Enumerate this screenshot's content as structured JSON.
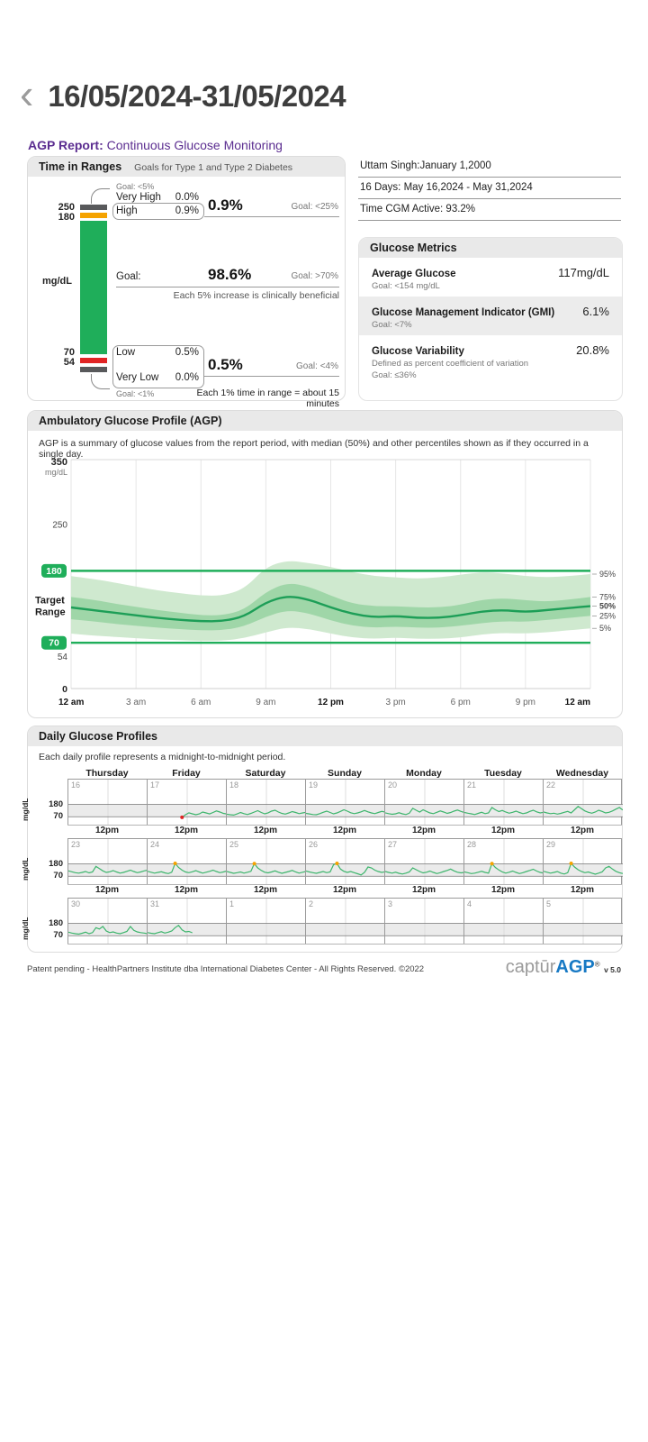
{
  "colors": {
    "accent_purple": "#5b2d90",
    "green": "#1fae5a",
    "light_green_band": "#cfe9cf",
    "mid_green_band": "#9fd6a8",
    "median_green": "#1d9e57",
    "orange": "#f5a300",
    "red": "#e02424",
    "dark_gray": "#58595b",
    "band_gray": "#ebebeb",
    "trace_green": "#3db56c",
    "logo_blue": "#1779c4"
  },
  "header": {
    "back_icon": "‹",
    "title": "16/05/2024-31/05/2024"
  },
  "report": {
    "label": "AGP Report:",
    "subtitle": "Continuous Glucose Monitoring"
  },
  "time_in_ranges": {
    "title": "Time in Ranges",
    "subtitle": "Goals for Type 1 and Type 2 Diabetes",
    "axis": {
      "v250": "250",
      "v180": "180",
      "v70": "70",
      "v54": "54",
      "unit": "mg/dL"
    },
    "very_high": {
      "label": "Very High",
      "value": "0.0%",
      "goal": "Goal: <5%"
    },
    "high": {
      "label": "High",
      "value": "0.9%"
    },
    "high_combined": {
      "value": "0.9%",
      "goal": "Goal: <25%"
    },
    "target": {
      "label": "Goal:",
      "value": "98.6%",
      "goal": "Goal: >70%",
      "note": "Each 5% increase is clinically beneficial"
    },
    "low": {
      "label": "Low",
      "value": "0.5%"
    },
    "low_combined": {
      "value": "0.5%",
      "goal": "Goal: <4%"
    },
    "very_low": {
      "label": "Very Low",
      "value": "0.0%",
      "goal": "Goal: <1%"
    },
    "footnote": "Each 1% time in range = about 15 minutes"
  },
  "patient": {
    "name_dob": "Uttam Singh:January 1,2000",
    "period": "16 Days: May 16,2024 - May 31,2024",
    "cgm_active": "Time CGM Active: 93.2%"
  },
  "glucose_metrics": {
    "title": "Glucose Metrics",
    "rows": [
      {
        "label": "Average Glucose",
        "value": "117mg/dL",
        "sub": [
          "Goal: <154 mg/dL"
        ],
        "highlight": false
      },
      {
        "label": "Glucose Management Indicator (GMI)",
        "value": "6.1%",
        "sub": [
          "Goal: <7%"
        ],
        "highlight": true
      },
      {
        "label": "Glucose Variability",
        "value": "20.8%",
        "sub": [
          "Defined as percent coefficient of variation",
          "Goal: ≤36%"
        ],
        "highlight": false
      }
    ]
  },
  "agp": {
    "title": "Ambulatory Glucose Profile (AGP)",
    "description": "AGP is a summary of glucose values from the report period, with median (50%) and other percentiles shown as if they occurred in a single day.",
    "target_range_label": [
      "Target",
      "Range"
    ],
    "y_axis": {
      "top": "350",
      "unit": "mg/dL",
      "v250": "250",
      "badge_high": "180",
      "badge_low": "70",
      "v54": "54",
      "v0": "0"
    },
    "chart_data": {
      "type": "area",
      "ylim": [
        0,
        350
      ],
      "target_lines": [
        180,
        70
      ],
      "x_hours": [
        0,
        1,
        2,
        3,
        4,
        5,
        6,
        7,
        8,
        9,
        10,
        11,
        12,
        13,
        14,
        15,
        16,
        17,
        18,
        19,
        20,
        21,
        22,
        23,
        24
      ],
      "x_labels": [
        {
          "t": "12 am",
          "b": true
        },
        {
          "t": "3 am",
          "b": false
        },
        {
          "t": "6 am",
          "b": false
        },
        {
          "t": "9 am",
          "b": false
        },
        {
          "t": "12 pm",
          "b": true
        },
        {
          "t": "3 pm",
          "b": false
        },
        {
          "t": "6 pm",
          "b": false
        },
        {
          "t": "9 pm",
          "b": false
        },
        {
          "t": "12 am",
          "b": true
        }
      ],
      "percentile_labels": [
        {
          "t": "95%",
          "series": "p95",
          "bold": false
        },
        {
          "t": "75%",
          "series": "p75",
          "bold": false
        },
        {
          "t": "50%",
          "series": "p50",
          "bold": true
        },
        {
          "t": "25%",
          "series": "p25",
          "bold": false
        },
        {
          "t": "5%",
          "series": "p5",
          "bold": false
        }
      ],
      "series": {
        "p95": [
          172,
          168,
          162,
          156,
          150,
          146,
          142,
          142,
          152,
          186,
          196,
          192,
          186,
          178,
          172,
          170,
          168,
          170,
          174,
          178,
          176,
          172,
          170,
          172,
          175
        ],
        "p75": [
          140,
          136,
          130,
          125,
          120,
          116,
          112,
          112,
          120,
          148,
          162,
          156,
          142,
          130,
          126,
          126,
          124,
          124,
          128,
          136,
          138,
          135,
          133,
          136,
          140
        ],
        "p50": [
          124,
          120,
          116,
          112,
          108,
          105,
          103,
          103,
          110,
          132,
          142,
          136,
          124,
          114,
          109,
          111,
          108,
          108,
          112,
          118,
          120,
          117,
          120,
          123,
          126
        ],
        "p25": [
          106,
          103,
          99,
          96,
          93,
          91,
          89,
          89,
          95,
          110,
          120,
          115,
          104,
          96,
          93,
          95,
          93,
          93,
          96,
          100,
          103,
          102,
          105,
          108,
          111
        ],
        "p5": [
          84,
          81,
          79,
          77,
          75,
          74,
          73,
          73,
          77,
          86,
          94,
          91,
          84,
          78,
          76,
          78,
          76,
          76,
          78,
          83,
          85,
          84,
          86,
          89,
          92
        ]
      }
    }
  },
  "daily": {
    "title": "Daily Glucose Profiles",
    "description": "Each daily profile represents a midnight-to-midnight period.",
    "day_names": [
      "Thursday",
      "Friday",
      "Saturday",
      "Sunday",
      "Monday",
      "Tuesday",
      "Wednesday"
    ],
    "unit": "mg/dL",
    "y180": "180",
    "y70": "70",
    "noon_label": "12pm",
    "rows": [
      {
        "days": [
          {
            "num": "16",
            "values": []
          },
          {
            "num": "17",
            "values": [
              null,
              null,
              null,
              null,
              null,
              null,
              null,
              null,
              null,
              null,
              65,
              88,
              105,
              96,
              88,
              95,
              112,
              104,
              95,
              108,
              122,
              112,
              100,
              95
            ]
          },
          {
            "num": "18",
            "values": [
              92,
              88,
              85,
              95,
              108,
              98,
              90,
              100,
              112,
              124,
              108,
              96,
              105,
              120,
              128,
              112,
              100,
              94,
              104,
              116,
              108,
              98,
              104,
              110
            ]
          },
          {
            "num": "19",
            "values": [
              100,
              95,
              90,
              88,
              98,
              110,
              120,
              108,
              96,
              104,
              118,
              132,
              120,
              106,
              98,
              104,
              114,
              126,
              114,
              104,
              98,
              108,
              118,
              112
            ]
          },
          {
            "num": "20",
            "values": [
              105,
              98,
              92,
              96,
              106,
              96,
              90,
              102,
              145,
              128,
              112,
              132,
              118,
              104,
              98,
              110,
              122,
              112,
              100,
              108,
              120,
              130,
              118,
              108
            ]
          },
          {
            "num": "21",
            "values": [
              108,
              102,
              96,
              90,
              100,
              110,
              98,
              104,
              152,
              132,
              116,
              126,
              112,
              102,
              110,
              120,
              108,
              98,
              104,
              118,
              128,
              114,
              104,
              110
            ]
          },
          {
            "num": "22",
            "values": [
              112,
              104,
              98,
              102,
              94,
              100,
              110,
              118,
              104,
              132,
              162,
              142,
              122,
              110,
              102,
              112,
              128,
              118,
              104,
              110,
              122,
              138,
              152,
              130
            ]
          }
        ]
      },
      {
        "days": [
          {
            "num": "23",
            "values": [
              118,
              110,
              102,
              98,
              104,
              112,
              100,
              108,
              158,
              138,
              118,
              104,
              110,
              120,
              108,
              98,
              104,
              114,
              124,
              112,
              102,
              108,
              118,
              124
            ]
          },
          {
            "num": "24",
            "values": [
              114,
              106,
              98,
              104,
              110,
              100,
              94,
              106,
              184,
              148,
              124,
              108,
              102,
              110,
              120,
              108,
              98,
              106,
              114,
              124,
              112,
              102,
              108,
              116
            ]
          },
          {
            "num": "25",
            "values": [
              112,
              104,
              96,
              102,
              108,
              98,
              106,
              114,
              182,
              144,
              122,
              106,
              100,
              108,
              118,
              106,
              96,
              104,
              112,
              122,
              108,
              98,
              106,
              112
            ]
          },
          {
            "num": "26",
            "values": [
              116,
              108,
              102,
              96,
              104,
              112,
              102,
              108,
              172,
              184,
              134,
              114,
              104,
              112,
              102,
              92,
              82,
              104,
              152,
              144,
              124,
              112,
              104,
              110
            ]
          },
          {
            "num": "27",
            "values": [
              112,
              104,
              98,
              106,
              96,
              90,
              98,
              108,
              144,
              128,
              112,
              100,
              106,
              116,
              104,
              94,
              102,
              112,
              122,
              134,
              118,
              106,
              100,
              104
            ]
          },
          {
            "num": "28",
            "values": [
              108,
              102,
              94,
              98,
              106,
              114,
              104,
              98,
              182,
              148,
              126,
              108,
              98,
              106,
              116,
              104,
              94,
              102,
              112,
              122,
              132,
              116,
              104,
              98
            ]
          },
          {
            "num": "29",
            "values": [
              114,
              106,
              98,
              104,
              112,
              98,
              90,
              102,
              184,
              152,
              128,
              112,
              102,
              108,
              98,
              88,
              98,
              108,
              144,
              158,
              134,
              114,
              102,
              94
            ]
          }
        ]
      },
      {
        "days": [
          {
            "num": "30",
            "values": [
              102,
              94,
              88,
              84,
              92,
              102,
              88,
              98,
              142,
              130,
              152,
              112,
              98,
              104,
              94,
              88,
              98,
              108,
              152,
              118,
              104,
              98,
              94,
              88
            ]
          },
          {
            "num": "31",
            "values": [
              98,
              92,
              88,
              98,
              106,
              94,
              102,
              112,
              142,
              162,
              122,
              104,
              108,
              96
            ]
          },
          {
            "num": "1",
            "values": []
          },
          {
            "num": "2",
            "values": []
          },
          {
            "num": "3",
            "values": []
          },
          {
            "num": "4",
            "values": []
          },
          {
            "num": "5",
            "values": []
          }
        ]
      }
    ]
  },
  "footer": {
    "text": "Patent pending - HealthPartners Institute dba International Diabetes Center - All Rights Reserved.  ©2022",
    "logo": {
      "part1": "captūr",
      "part2": "AGP",
      "tm": "®",
      "version": "v 5.0"
    }
  }
}
